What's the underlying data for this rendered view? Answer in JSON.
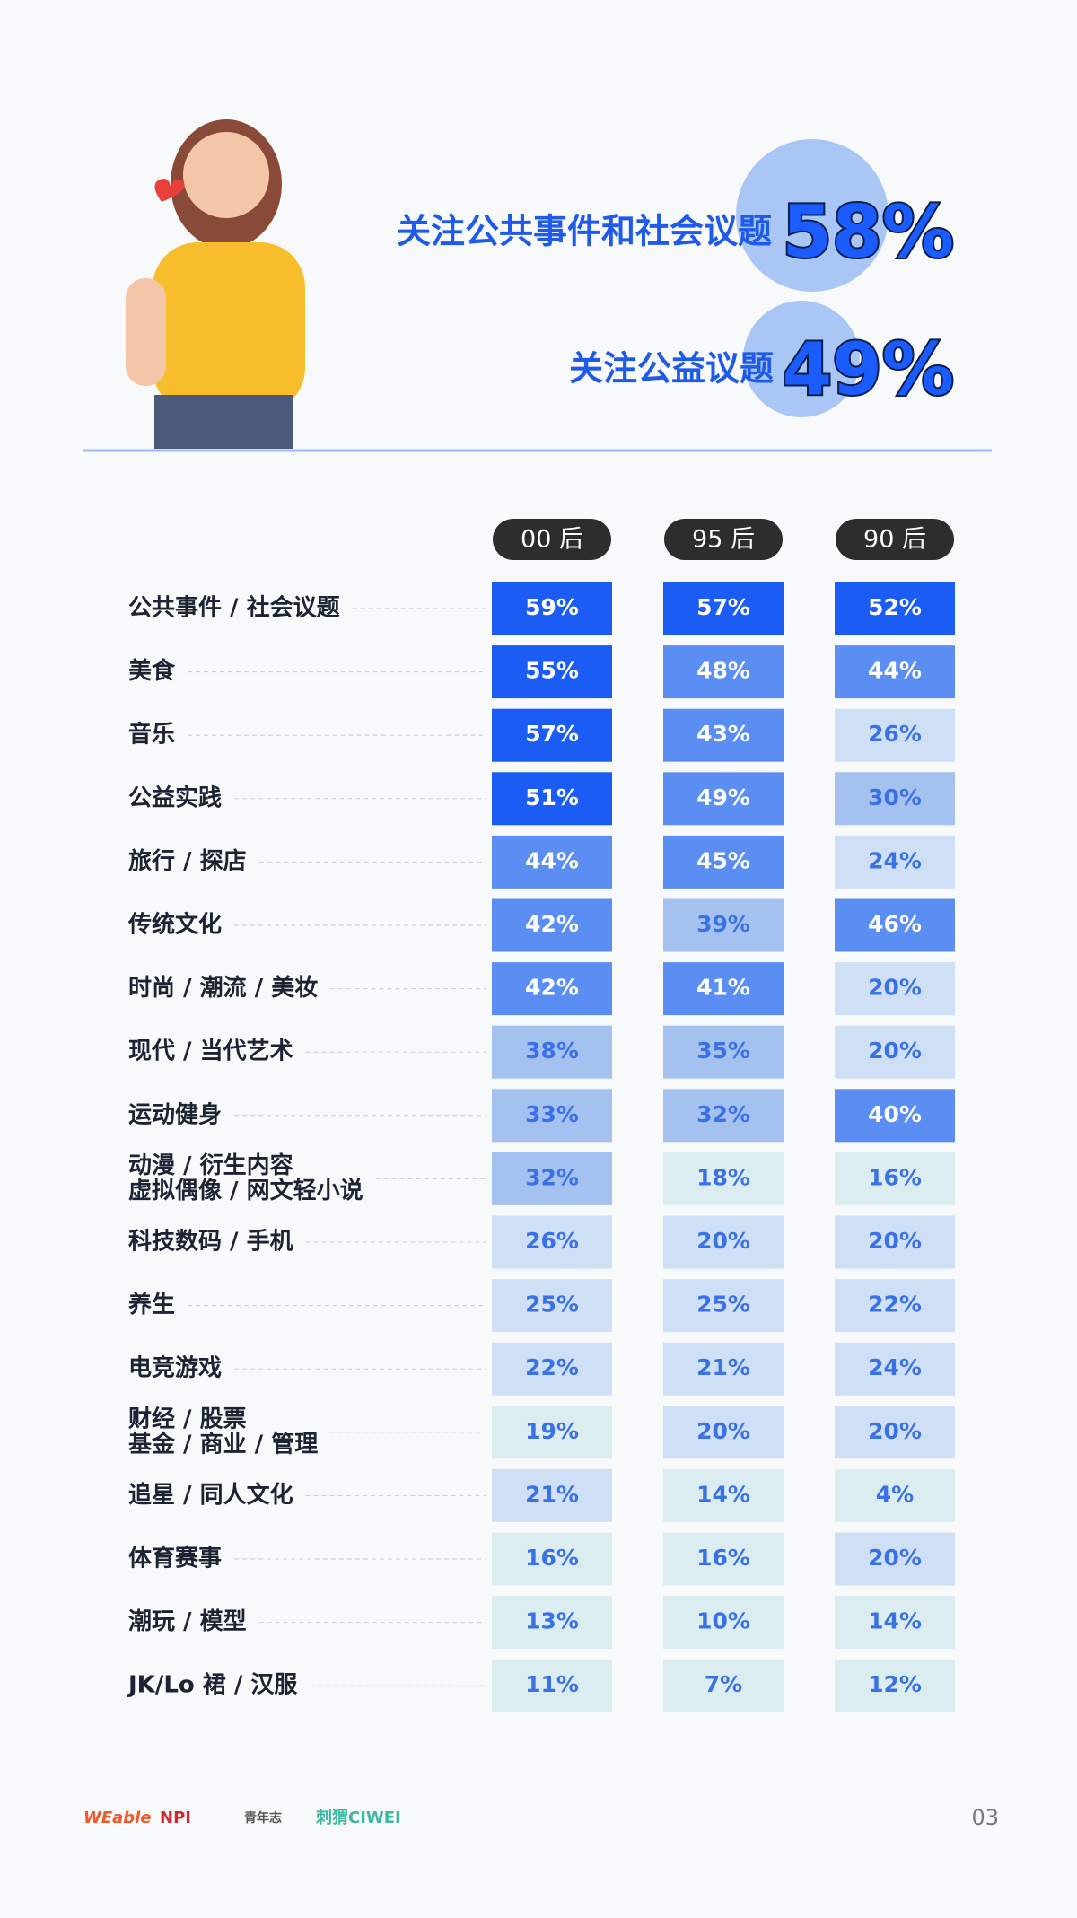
{
  "header": {
    "stats": [
      {
        "label": "关注公共事件和社会议题",
        "value": "58%"
      },
      {
        "label": "关注公益议题",
        "value": "49%"
      }
    ]
  },
  "table": {
    "columns": [
      "00 后",
      "95 后",
      "90 后"
    ],
    "rows": [
      {
        "label": [
          "公共事件 / 社会议题"
        ],
        "values": [
          "59%",
          "57%",
          "52%"
        ]
      },
      {
        "label": [
          "美食"
        ],
        "values": [
          "55%",
          "48%",
          "44%"
        ]
      },
      {
        "label": [
          "音乐"
        ],
        "values": [
          "57%",
          "43%",
          "26%"
        ]
      },
      {
        "label": [
          "公益实践"
        ],
        "values": [
          "51%",
          "49%",
          "30%"
        ]
      },
      {
        "label": [
          "旅行 / 探店"
        ],
        "values": [
          "44%",
          "45%",
          "24%"
        ]
      },
      {
        "label": [
          "传统文化"
        ],
        "values": [
          "42%",
          "39%",
          "46%"
        ]
      },
      {
        "label": [
          "时尚 / 潮流 / 美妆"
        ],
        "values": [
          "42%",
          "41%",
          "20%"
        ]
      },
      {
        "label": [
          "现代 / 当代艺术"
        ],
        "values": [
          "38%",
          "35%",
          "20%"
        ]
      },
      {
        "label": [
          "运动健身"
        ],
        "values": [
          "33%",
          "32%",
          "40%"
        ]
      },
      {
        "label": [
          "动漫 / 衍生内容",
          "虚拟偶像 / 网文轻小说"
        ],
        "values": [
          "32%",
          "18%",
          "16%"
        ]
      },
      {
        "label": [
          "科技数码 / 手机"
        ],
        "values": [
          "26%",
          "20%",
          "20%"
        ]
      },
      {
        "label": [
          "养生"
        ],
        "values": [
          "25%",
          "25%",
          "22%"
        ]
      },
      {
        "label": [
          "电竞游戏"
        ],
        "values": [
          "22%",
          "21%",
          "24%"
        ]
      },
      {
        "label": [
          "财经 / 股票",
          "基金 / 商业 / 管理"
        ],
        "values": [
          "19%",
          "20%",
          "20%"
        ]
      },
      {
        "label": [
          "追星 / 同人文化"
        ],
        "values": [
          "21%",
          "14%",
          "4%"
        ]
      },
      {
        "label": [
          "体育赛事"
        ],
        "values": [
          "16%",
          "16%",
          "20%"
        ]
      },
      {
        "label": [
          "潮玩 / 模型"
        ],
        "values": [
          "13%",
          "10%",
          "14%"
        ]
      },
      {
        "label": [
          "JK/Lo 裙 / 汉服"
        ],
        "values": [
          "11%",
          "7%",
          "12%"
        ]
      }
    ]
  },
  "footer": {
    "logos": [
      "WEable",
      "NPI",
      "青年志",
      "刺猬CIWEI"
    ],
    "page": "03"
  }
}
